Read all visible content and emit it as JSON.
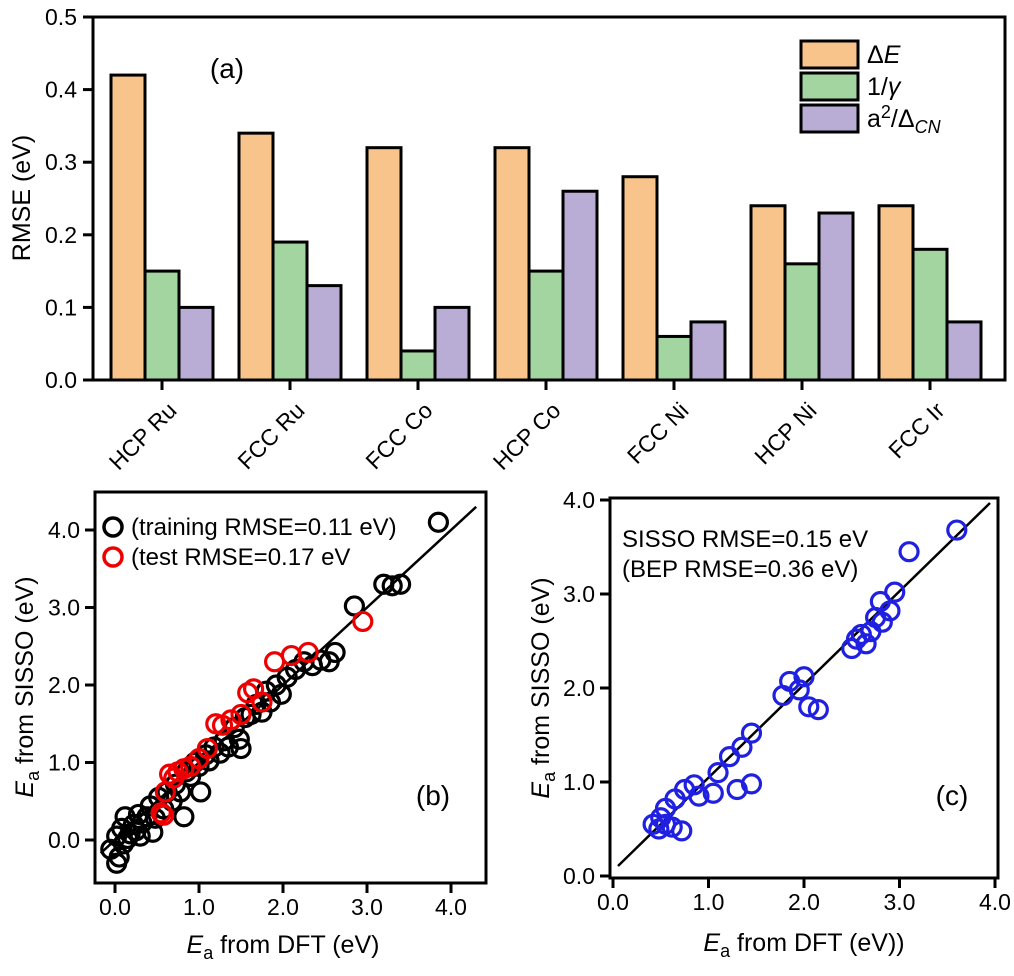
{
  "chart_data": [
    {
      "type": "bar",
      "panel_label": "(a)",
      "ylabel": "RMSE (eV)",
      "ylim": [
        0.0,
        0.5
      ],
      "yticks": [
        "0.0",
        "0.1",
        "0.2",
        "0.3",
        "0.4",
        "0.5"
      ],
      "categories": [
        "HCP Ru",
        "FCC Ru",
        "FCC Co",
        "HCP Co",
        "FCC Ni",
        "HCP Ni",
        "FCC Ir"
      ],
      "legend_position": "top-right",
      "grid": false,
      "series": [
        {
          "label": "Δ*E*",
          "plain_label": "ΔE",
          "color": "#F9C48B",
          "values": [
            0.42,
            0.34,
            0.32,
            0.32,
            0.28,
            0.24,
            0.24
          ]
        },
        {
          "label": "1/*γ*",
          "plain_label": "1/γ",
          "color": "#A3D5A0",
          "values": [
            0.15,
            0.19,
            0.04,
            0.15,
            0.06,
            0.16,
            0.18
          ]
        },
        {
          "label": "a^2^/Δ_*CN*_",
          "plain_label": "a²/ΔCN",
          "color": "#B9ACD5",
          "values": [
            0.1,
            0.13,
            0.1,
            0.26,
            0.08,
            0.23,
            0.08
          ]
        }
      ]
    },
    {
      "type": "scatter",
      "panel_label": "(b)",
      "xlabel": "*E*_a_ from DFT (eV)",
      "ylabel": "*E*_a_ from SISSO (eV)",
      "xticks": [
        "0.0",
        "1.0",
        "2.0",
        "3.0",
        "4.0"
      ],
      "yticks": [
        "0.0",
        "1.0",
        "2.0",
        "3.0",
        "4.0"
      ],
      "xlim": [
        -0.25,
        4.45
      ],
      "ylim": [
        -0.55,
        4.5
      ],
      "parity_line": true,
      "legend_position": "top-left",
      "series": [
        {
          "label": "(training RMSE=0.11 eV)",
          "color": "#000000",
          "points": [
            [
              -0.05,
              -0.12
            ],
            [
              0.02,
              -0.3
            ],
            [
              0.02,
              0.05
            ],
            [
              0.05,
              -0.22
            ],
            [
              0.08,
              0.15
            ],
            [
              0.1,
              -0.05
            ],
            [
              0.12,
              0.3
            ],
            [
              0.15,
              0.02
            ],
            [
              0.18,
              0.08
            ],
            [
              0.22,
              0.2
            ],
            [
              0.25,
              0.12
            ],
            [
              0.28,
              0.33
            ],
            [
              0.3,
              0.05
            ],
            [
              0.32,
              0.22
            ],
            [
              0.38,
              0.3
            ],
            [
              0.42,
              0.44
            ],
            [
              0.45,
              0.1
            ],
            [
              0.48,
              0.28
            ],
            [
              0.52,
              0.55
            ],
            [
              0.58,
              0.4
            ],
            [
              0.62,
              0.62
            ],
            [
              0.68,
              0.5
            ],
            [
              0.72,
              0.72
            ],
            [
              0.78,
              0.62
            ],
            [
              0.82,
              0.3
            ],
            [
              0.85,
              0.88
            ],
            [
              0.9,
              0.82
            ],
            [
              0.95,
              1.0
            ],
            [
              1.0,
              0.95
            ],
            [
              1.02,
              0.62
            ],
            [
              1.08,
              1.1
            ],
            [
              1.12,
              1.02
            ],
            [
              1.18,
              1.2
            ],
            [
              1.25,
              1.12
            ],
            [
              1.3,
              1.28
            ],
            [
              1.35,
              1.2
            ],
            [
              1.42,
              1.45
            ],
            [
              1.48,
              1.3
            ],
            [
              1.5,
              1.18
            ],
            [
              1.55,
              1.58
            ],
            [
              1.62,
              1.62
            ],
            [
              1.68,
              1.75
            ],
            [
              1.75,
              1.65
            ],
            [
              1.8,
              1.92
            ],
            [
              1.85,
              1.78
            ],
            [
              1.92,
              2.0
            ],
            [
              1.98,
              1.88
            ],
            [
              2.05,
              2.1
            ],
            [
              2.15,
              2.2
            ],
            [
              2.25,
              2.3
            ],
            [
              2.35,
              2.25
            ],
            [
              2.45,
              2.32
            ],
            [
              2.55,
              2.3
            ],
            [
              2.62,
              2.42
            ],
            [
              2.85,
              3.02
            ],
            [
              3.2,
              3.3
            ],
            [
              3.3,
              3.28
            ],
            [
              3.4,
              3.3
            ],
            [
              3.85,
              4.1
            ]
          ]
        },
        {
          "label": "(test RMSE=0.17 eV",
          "color": "#EE0000",
          "points": [
            [
              0.55,
              0.35
            ],
            [
              0.58,
              0.32
            ],
            [
              0.6,
              0.62
            ],
            [
              0.65,
              0.85
            ],
            [
              0.7,
              0.8
            ],
            [
              0.75,
              0.88
            ],
            [
              0.82,
              0.92
            ],
            [
              0.9,
              0.95
            ],
            [
              1.0,
              1.05
            ],
            [
              1.1,
              1.18
            ],
            [
              1.2,
              1.5
            ],
            [
              1.28,
              1.48
            ],
            [
              1.38,
              1.55
            ],
            [
              1.5,
              1.62
            ],
            [
              1.58,
              1.9
            ],
            [
              1.65,
              1.95
            ],
            [
              1.75,
              1.78
            ],
            [
              1.9,
              2.3
            ],
            [
              2.1,
              2.38
            ],
            [
              2.3,
              2.42
            ],
            [
              2.95,
              2.82
            ]
          ]
        }
      ]
    },
    {
      "type": "scatter",
      "panel_label": "(c)",
      "xlabel": "*E*_a_ from DFT (eV))",
      "ylabel": "*E*_a_ from SISSO (eV)",
      "annotations": [
        "SISSO RMSE=0.15 eV",
        "(BEP RMSE=0.36 eV)"
      ],
      "xticks": [
        "0.0",
        "1.0",
        "2.0",
        "3.0",
        "4.0"
      ],
      "yticks": [
        "0.0",
        "1.0",
        "2.0",
        "3.0",
        "4.0"
      ],
      "xlim": [
        0.0,
        4.06
      ],
      "ylim": [
        0.0,
        4.04
      ],
      "parity_line": true,
      "series": [
        {
          "label": "SISSO",
          "color": "#2020E0",
          "points": [
            [
              0.42,
              0.55
            ],
            [
              0.48,
              0.5
            ],
            [
              0.5,
              0.62
            ],
            [
              0.55,
              0.55
            ],
            [
              0.55,
              0.72
            ],
            [
              0.62,
              0.52
            ],
            [
              0.65,
              0.82
            ],
            [
              0.72,
              0.48
            ],
            [
              0.75,
              0.92
            ],
            [
              0.85,
              0.97
            ],
            [
              0.9,
              0.85
            ],
            [
              1.05,
              0.88
            ],
            [
              1.1,
              1.1
            ],
            [
              1.22,
              1.27
            ],
            [
              1.3,
              0.92
            ],
            [
              1.35,
              1.37
            ],
            [
              1.45,
              1.52
            ],
            [
              1.45,
              0.98
            ],
            [
              1.78,
              1.92
            ],
            [
              1.85,
              2.07
            ],
            [
              1.95,
              1.98
            ],
            [
              2.0,
              2.12
            ],
            [
              2.05,
              1.8
            ],
            [
              2.15,
              1.77
            ],
            [
              2.5,
              2.42
            ],
            [
              2.55,
              2.52
            ],
            [
              2.6,
              2.57
            ],
            [
              2.65,
              2.47
            ],
            [
              2.7,
              2.6
            ],
            [
              2.75,
              2.75
            ],
            [
              2.8,
              2.92
            ],
            [
              2.82,
              2.7
            ],
            [
              2.9,
              2.82
            ],
            [
              2.95,
              3.02
            ],
            [
              3.1,
              3.45
            ],
            [
              3.6,
              3.68
            ]
          ]
        }
      ]
    }
  ],
  "style": {
    "frame_color": "#000000",
    "bar_stroke": "#000000",
    "marker_radius": 9,
    "background": "#FFFFFF"
  }
}
